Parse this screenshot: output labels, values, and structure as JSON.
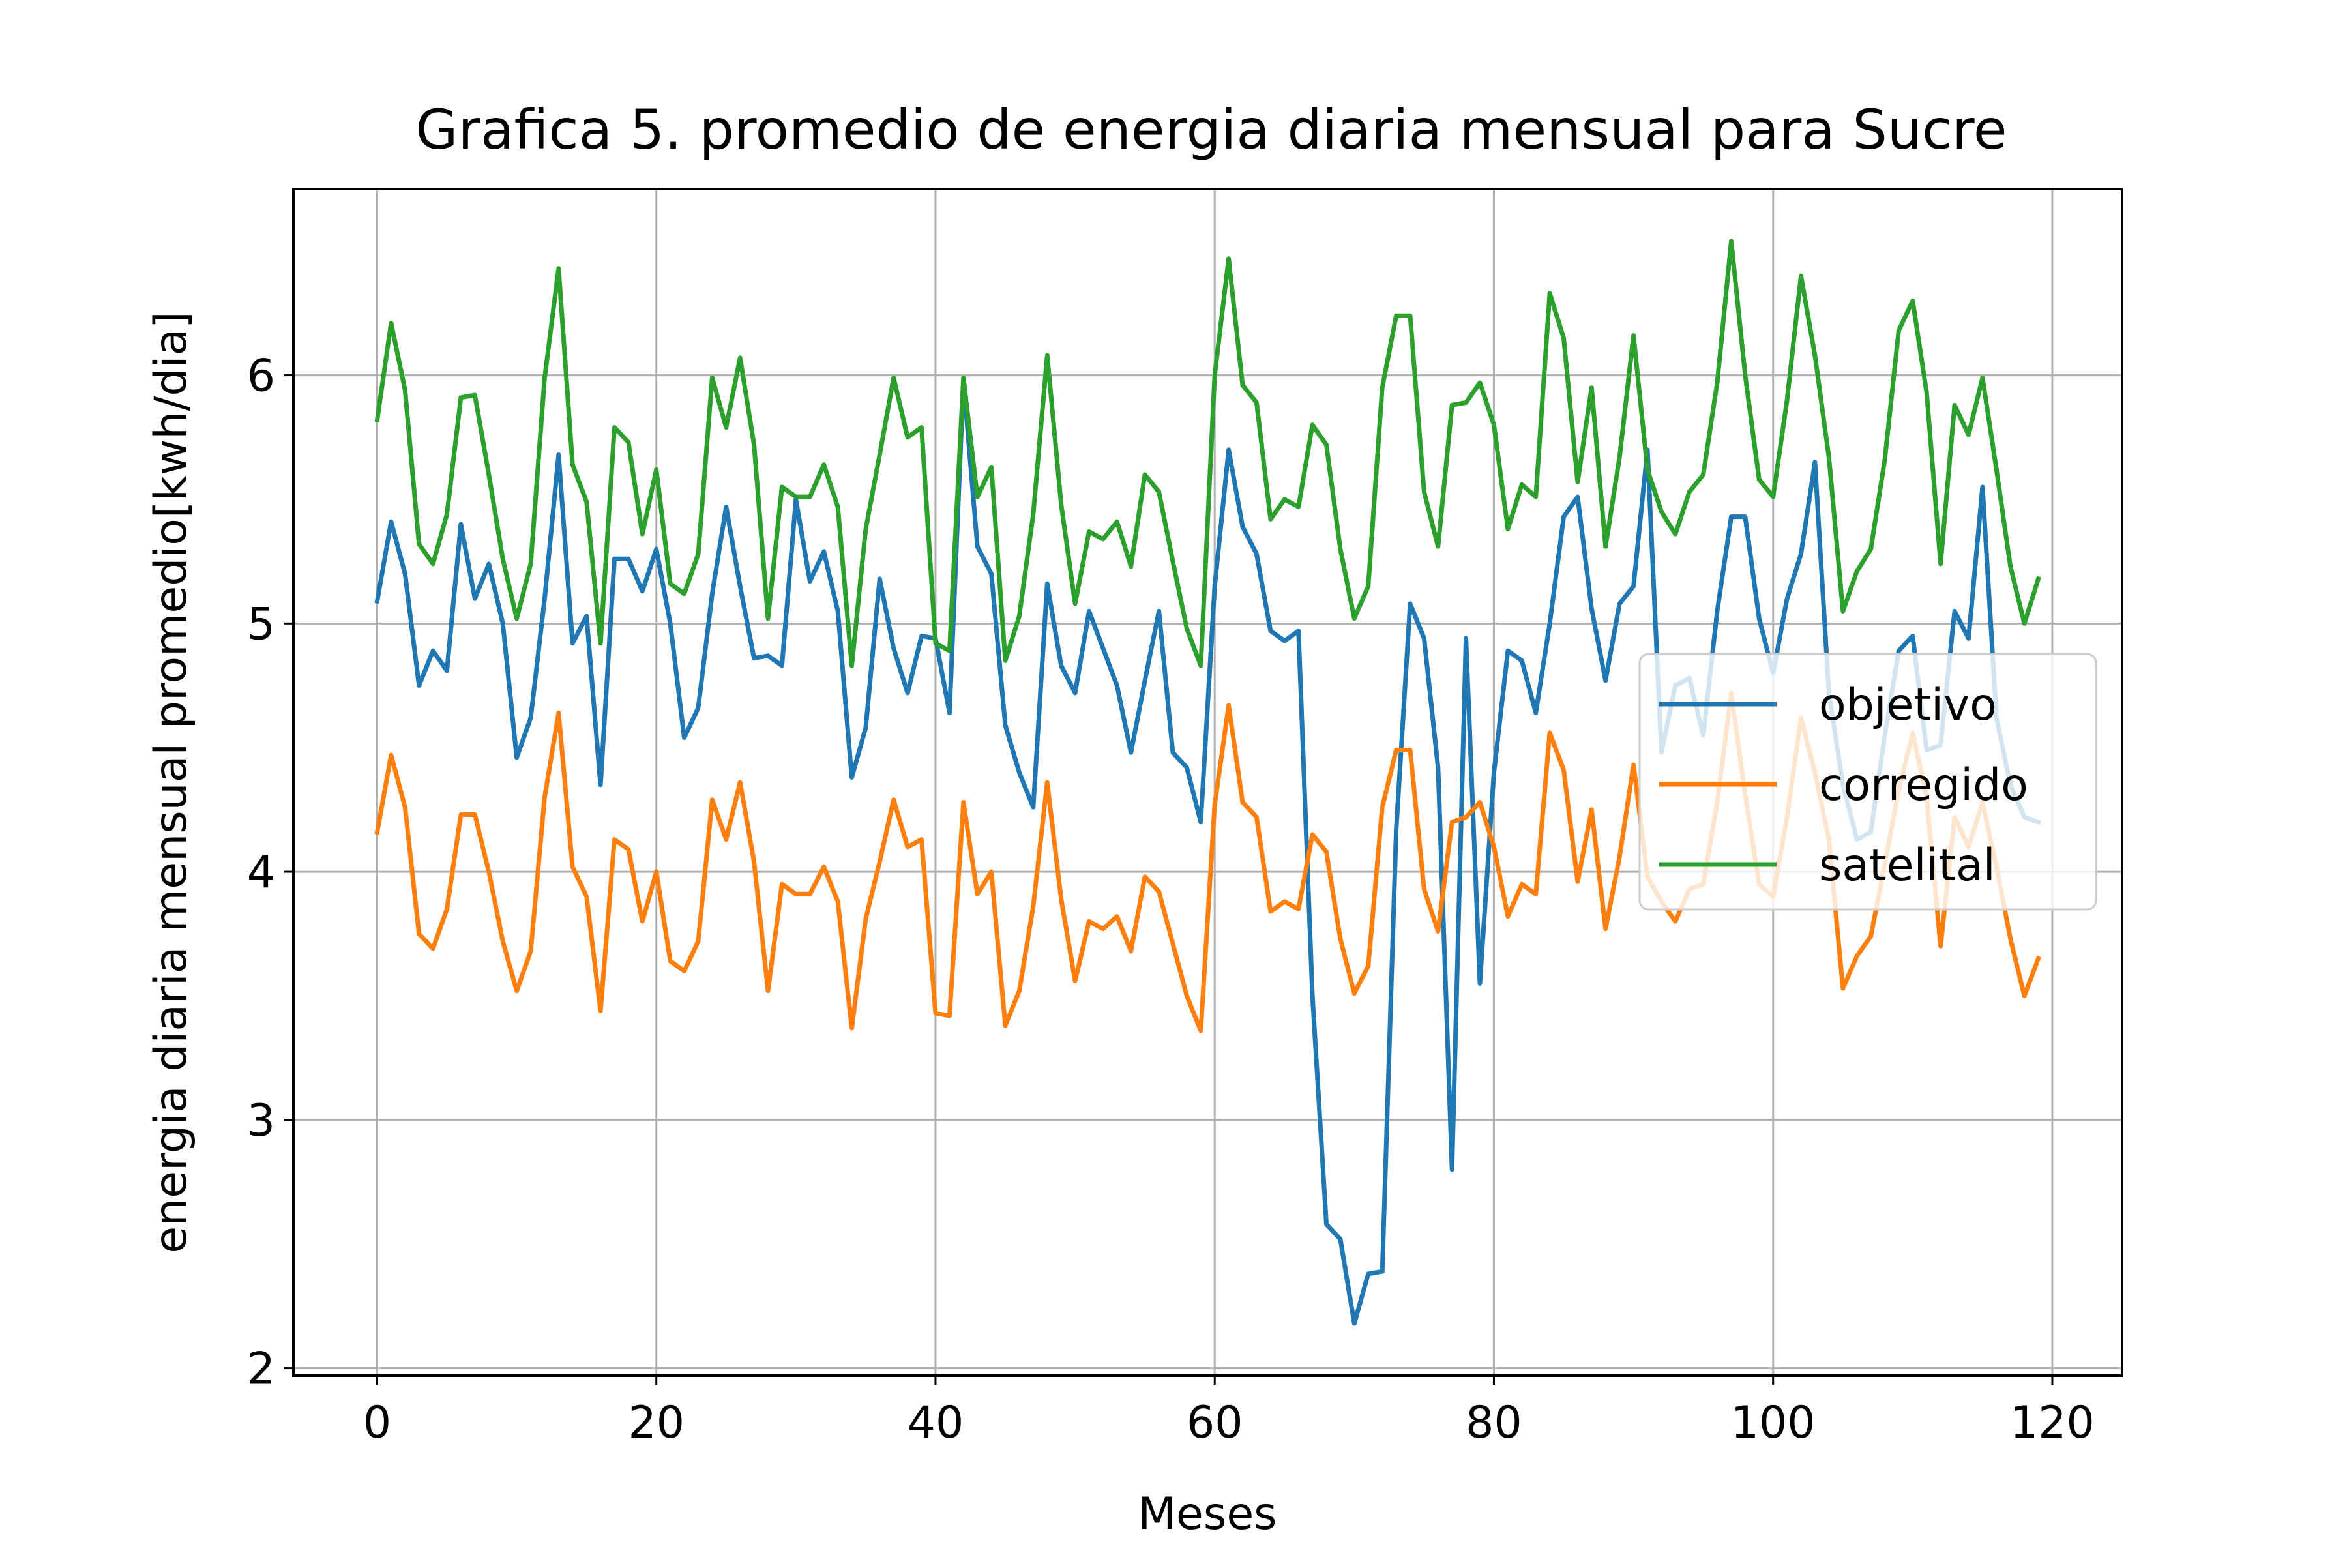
{
  "chart_data": {
    "type": "line",
    "title": "Grafica 5. promedio de energia diaria mensual para Sucre",
    "xlabel": "Meses",
    "ylabel": "energia diaria mensual promedio[kwh/dia]",
    "xlim": [
      -6,
      125
    ],
    "ylim": [
      1.97,
      6.75
    ],
    "xticks": [
      0,
      20,
      40,
      60,
      80,
      100,
      120
    ],
    "yticks": [
      2,
      3,
      4,
      5,
      6
    ],
    "grid": true,
    "legend_position": "center-right",
    "series": [
      {
        "name": "objetivo",
        "color": "#1f77b4",
        "values": [
          5.09,
          5.41,
          5.2,
          4.75,
          4.89,
          4.81,
          5.4,
          5.1,
          5.24,
          5.0,
          4.46,
          4.62,
          5.1,
          5.68,
          4.92,
          5.03,
          4.35,
          5.26,
          5.26,
          5.13,
          5.3,
          5.0,
          4.54,
          4.66,
          5.12,
          5.47,
          5.15,
          4.86,
          4.87,
          4.83,
          5.5,
          5.17,
          5.29,
          5.05,
          4.38,
          4.58,
          5.18,
          4.9,
          4.72,
          4.95,
          4.94,
          4.64,
          5.98,
          5.31,
          5.2,
          4.59,
          4.4,
          4.26,
          5.16,
          4.83,
          4.72,
          5.05,
          4.9,
          4.75,
          4.48,
          4.77,
          5.05,
          4.48,
          4.42,
          4.2,
          5.15,
          5.7,
          5.39,
          5.28,
          4.97,
          4.93,
          4.97,
          3.5,
          2.58,
          2.52,
          2.18,
          2.38,
          2.39,
          4.17,
          5.08,
          4.94,
          4.42,
          2.8,
          4.94,
          3.55,
          4.4,
          4.89,
          4.85,
          4.64,
          5.0,
          5.43,
          5.51,
          5.06,
          4.77,
          5.08,
          5.15,
          5.7,
          4.48,
          4.75,
          4.78,
          4.55,
          5.05,
          5.43,
          5.43,
          5.02,
          4.8,
          5.1,
          5.28,
          5.65,
          4.72,
          4.35,
          4.13,
          4.16,
          4.55,
          4.89,
          4.95,
          4.49,
          4.51,
          5.05,
          4.94,
          5.55,
          4.62,
          4.35,
          4.22,
          4.2
        ]
      },
      {
        "name": "corregido",
        "color": "#ff7f0e",
        "values": [
          4.16,
          4.47,
          4.26,
          3.75,
          3.69,
          3.85,
          4.23,
          4.23,
          4.0,
          3.72,
          3.52,
          3.68,
          4.3,
          4.64,
          4.02,
          3.9,
          3.44,
          4.13,
          4.09,
          3.8,
          4.0,
          3.64,
          3.6,
          3.72,
          4.29,
          4.13,
          4.36,
          4.04,
          3.52,
          3.95,
          3.91,
          3.91,
          4.02,
          3.88,
          3.37,
          3.81,
          4.04,
          4.29,
          4.1,
          4.13,
          3.43,
          3.42,
          4.28,
          3.91,
          4.0,
          3.38,
          3.52,
          3.86,
          4.36,
          3.89,
          3.56,
          3.8,
          3.77,
          3.82,
          3.68,
          3.98,
          3.92,
          3.71,
          3.5,
          3.36,
          4.27,
          4.67,
          4.28,
          4.22,
          3.84,
          3.88,
          3.85,
          4.15,
          4.08,
          3.73,
          3.51,
          3.62,
          4.26,
          4.49,
          4.49,
          3.93,
          3.76,
          4.2,
          4.22,
          4.28,
          4.1,
          3.82,
          3.95,
          3.91,
          4.56,
          4.41,
          3.96,
          4.25,
          3.77,
          4.06,
          4.43,
          3.98,
          3.88,
          3.8,
          3.93,
          3.95,
          4.28,
          4.72,
          4.31,
          3.95,
          3.9,
          4.22,
          4.62,
          4.4,
          4.13,
          3.53,
          3.66,
          3.74,
          4.03,
          4.33,
          4.56,
          4.3,
          3.7,
          4.22,
          4.1,
          4.28,
          4.02,
          3.73,
          3.5,
          3.65
        ]
      },
      {
        "name": "satelital",
        "color": "#2ca02c",
        "values": [
          5.82,
          6.21,
          5.94,
          5.32,
          5.24,
          5.44,
          5.91,
          5.92,
          5.6,
          5.26,
          5.02,
          5.24,
          5.99,
          6.43,
          5.64,
          5.49,
          4.92,
          5.79,
          5.73,
          5.36,
          5.62,
          5.16,
          5.12,
          5.28,
          5.99,
          5.79,
          6.07,
          5.72,
          5.02,
          5.55,
          5.51,
          5.51,
          5.64,
          5.47,
          4.83,
          5.38,
          5.68,
          5.99,
          5.75,
          5.79,
          4.92,
          4.89,
          5.99,
          5.51,
          5.63,
          4.85,
          5.03,
          5.44,
          6.08,
          5.48,
          5.08,
          5.37,
          5.34,
          5.41,
          5.23,
          5.6,
          5.53,
          5.25,
          4.98,
          4.83,
          6.0,
          6.47,
          5.96,
          5.89,
          5.42,
          5.5,
          5.47,
          5.8,
          5.72,
          5.3,
          5.02,
          5.15,
          5.95,
          6.24,
          6.24,
          5.53,
          5.31,
          5.88,
          5.89,
          5.97,
          5.8,
          5.38,
          5.56,
          5.51,
          6.33,
          6.15,
          5.57,
          5.95,
          5.31,
          5.67,
          6.16,
          5.62,
          5.45,
          5.36,
          5.53,
          5.6,
          5.97,
          6.54,
          6.0,
          5.58,
          5.51,
          5.9,
          6.4,
          6.08,
          5.67,
          5.05,
          5.21,
          5.3,
          5.66,
          6.18,
          6.3,
          5.93,
          5.24,
          5.88,
          5.76,
          5.99,
          5.62,
          5.23,
          5.0,
          5.18
        ]
      }
    ]
  }
}
